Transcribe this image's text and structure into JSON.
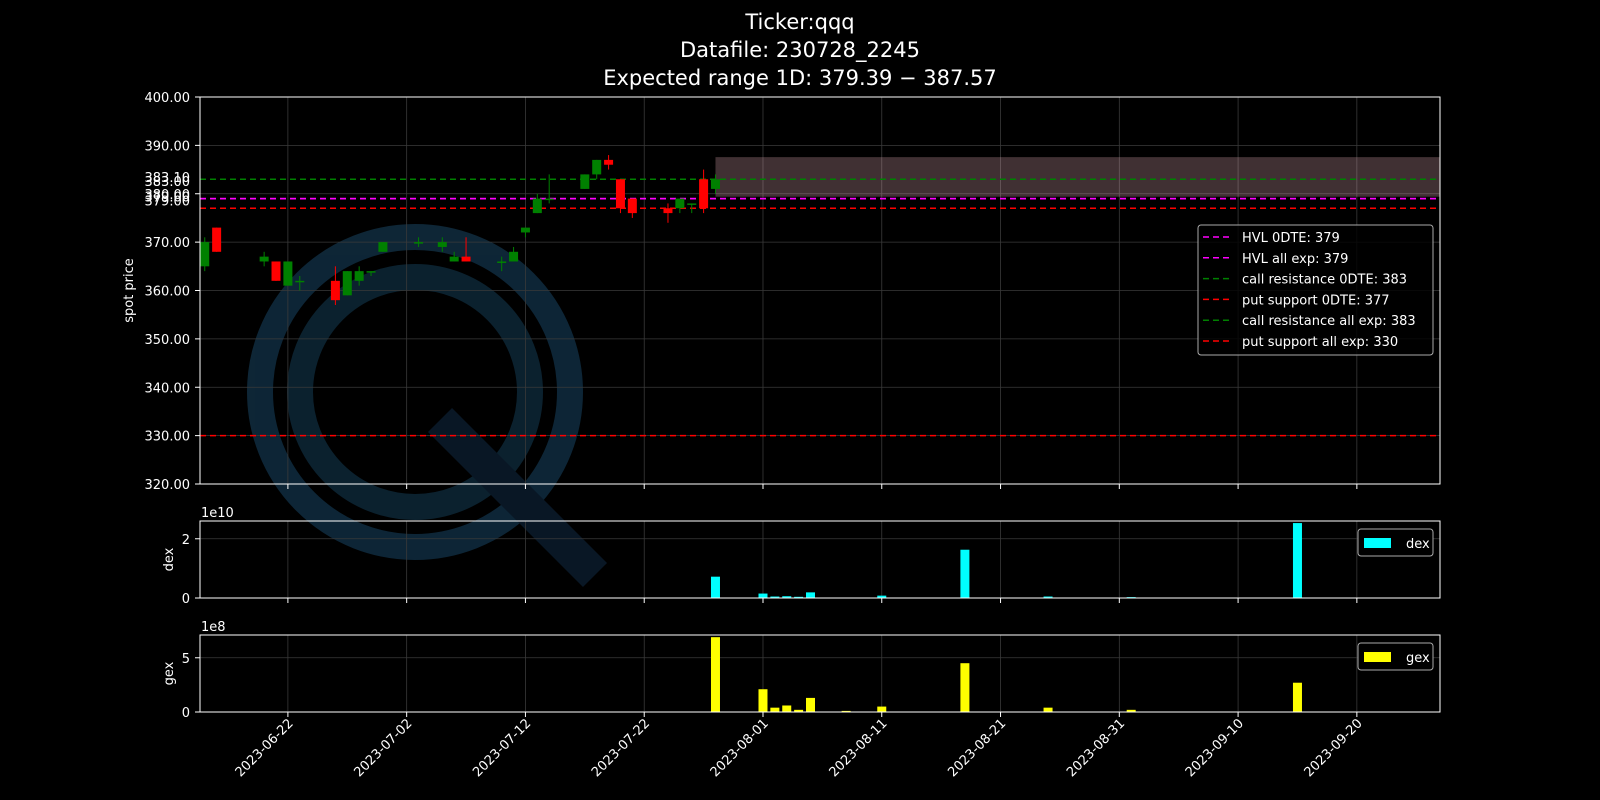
{
  "title": {
    "line1": "Ticker:qqq",
    "line2": "Datafile: 230728_2245",
    "line3": "Expected range 1D: 379.39 − 387.57"
  },
  "colors": {
    "background": "#000000",
    "up": "#008000",
    "down": "#ff0000",
    "hvl": "#ff00ff",
    "call_resistance": "#008000",
    "put_support": "#ff0000",
    "dex": "#00ffff",
    "gex": "#ffff00",
    "expected_range_fill": "#ffc0cb",
    "watermark": "#0d2a40"
  },
  "chart_data": [
    {
      "type": "candlestick",
      "ylabel": "spot price",
      "ylim": [
        320,
        400
      ],
      "yticks": [
        "320.00",
        "330.00",
        "340.00",
        "350.00",
        "360.00",
        "370.00",
        "380.00",
        "390.00",
        "400.00"
      ],
      "extra_ytick_labels": [
        {
          "label": "383.10",
          "value": 383.1
        },
        {
          "label": "383.00",
          "value": 383.0
        },
        {
          "label": "379.00",
          "value": 379.0
        },
        {
          "label": "379.00",
          "value": 379.0
        }
      ],
      "x_range": [
        "2023-06-15",
        "2023-09-27"
      ],
      "xticks": [
        "2023-06-22",
        "2023-07-02",
        "2023-07-12",
        "2023-07-22",
        "2023-08-01",
        "2023-08-11",
        "2023-08-21",
        "2023-08-31",
        "2023-09-10",
        "2023-09-20"
      ],
      "grid": true,
      "candles": [
        {
          "date": "2023-06-15",
          "open": 365,
          "high": 371,
          "low": 364,
          "close": 370
        },
        {
          "date": "2023-06-16",
          "open": 373,
          "high": 373,
          "low": 368,
          "close": 368
        },
        {
          "date": "2023-06-20",
          "open": 366,
          "high": 368,
          "low": 365,
          "close": 367
        },
        {
          "date": "2023-06-21",
          "open": 366,
          "high": 366,
          "low": 362,
          "close": 362
        },
        {
          "date": "2023-06-22",
          "open": 361,
          "high": 366,
          "low": 361,
          "close": 366
        },
        {
          "date": "2023-06-23",
          "open": 362,
          "high": 363,
          "low": 360,
          "close": 362
        },
        {
          "date": "2023-06-26",
          "open": 362,
          "high": 365,
          "low": 357,
          "close": 358
        },
        {
          "date": "2023-06-27",
          "open": 359,
          "high": 364,
          "low": 359,
          "close": 364
        },
        {
          "date": "2023-06-28",
          "open": 362,
          "high": 365,
          "low": 361,
          "close": 364
        },
        {
          "date": "2023-06-29",
          "open": 364,
          "high": 364,
          "low": 363,
          "close": 364
        },
        {
          "date": "2023-06-30",
          "open": 368,
          "high": 370,
          "low": 368,
          "close": 370
        },
        {
          "date": "2023-07-03",
          "open": 370,
          "high": 371,
          "low": 369,
          "close": 370
        },
        {
          "date": "2023-07-05",
          "open": 369,
          "high": 371,
          "low": 368,
          "close": 370
        },
        {
          "date": "2023-07-06",
          "open": 366,
          "high": 368,
          "low": 366,
          "close": 367
        },
        {
          "date": "2023-07-07",
          "open": 367,
          "high": 371,
          "low": 366,
          "close": 366
        },
        {
          "date": "2023-07-10",
          "open": 366,
          "high": 367,
          "low": 364,
          "close": 366
        },
        {
          "date": "2023-07-11",
          "open": 366,
          "high": 369,
          "low": 366,
          "close": 368
        },
        {
          "date": "2023-07-12",
          "open": 372,
          "high": 373,
          "low": 371,
          "close": 373
        },
        {
          "date": "2023-07-13",
          "open": 376,
          "high": 380,
          "low": 376,
          "close": 379
        },
        {
          "date": "2023-07-14",
          "open": 379,
          "high": 384,
          "low": 378,
          "close": 379
        },
        {
          "date": "2023-07-17",
          "open": 381,
          "high": 384,
          "low": 381,
          "close": 384
        },
        {
          "date": "2023-07-18",
          "open": 384,
          "high": 387,
          "low": 383,
          "close": 387
        },
        {
          "date": "2023-07-19",
          "open": 387,
          "high": 388,
          "low": 385,
          "close": 386
        },
        {
          "date": "2023-07-20",
          "open": 383,
          "high": 383,
          "low": 376,
          "close": 377
        },
        {
          "date": "2023-07-21",
          "open": 379,
          "high": 379,
          "low": 375,
          "close": 376
        },
        {
          "date": "2023-07-24",
          "open": 377,
          "high": 378,
          "low": 374,
          "close": 376
        },
        {
          "date": "2023-07-25",
          "open": 377,
          "high": 379,
          "low": 376,
          "close": 379
        },
        {
          "date": "2023-07-26",
          "open": 378,
          "high": 378,
          "low": 376,
          "close": 378
        },
        {
          "date": "2023-07-27",
          "open": 383,
          "high": 385,
          "low": 376,
          "close": 377
        },
        {
          "date": "2023-07-28",
          "open": 381,
          "high": 384,
          "low": 380,
          "close": 383
        }
      ],
      "expected_range_band": {
        "x_start": "2023-07-28",
        "x_end": "2023-09-27",
        "y_low": 379.39,
        "y_high": 387.57
      },
      "lines": [
        {
          "name": "HVL 0DTE: 379",
          "value": 379,
          "color_key": "hvl"
        },
        {
          "name": "HVL all exp: 379",
          "value": 379,
          "color_key": "hvl"
        },
        {
          "name": "call resistance 0DTE: 383",
          "value": 383,
          "color_key": "call_resistance"
        },
        {
          "name": "put support 0DTE: 377",
          "value": 377,
          "color_key": "put_support"
        },
        {
          "name": "call resistance all exp: 383",
          "value": 383,
          "color_key": "call_resistance"
        },
        {
          "name": "put support all exp: 330",
          "value": 330,
          "color_key": "put_support"
        }
      ],
      "legend_position": "right"
    },
    {
      "type": "bar",
      "name": "dex",
      "ylabel": "dex",
      "scale_label": "1e10",
      "ylim": [
        0,
        2.6
      ],
      "yticks": [
        "0",
        "2"
      ],
      "ytick_values": [
        0,
        2
      ],
      "legend": "dex",
      "legend_position": "top-right",
      "x": [
        "2023-07-28",
        "2023-08-01",
        "2023-08-02",
        "2023-08-03",
        "2023-08-04",
        "2023-08-05",
        "2023-08-11",
        "2023-08-18",
        "2023-08-25",
        "2023-09-01",
        "2023-09-15"
      ],
      "values": [
        0.72,
        0.15,
        0.05,
        0.06,
        0.04,
        0.19,
        0.08,
        1.63,
        0.05,
        0.03,
        2.53
      ]
    },
    {
      "type": "bar",
      "name": "gex",
      "ylabel": "gex",
      "scale_label": "1e8",
      "ylim": [
        0,
        7.1
      ],
      "yticks": [
        "0",
        "5"
      ],
      "ytick_values": [
        0,
        5
      ],
      "legend": "gex",
      "legend_position": "top-right",
      "x": [
        "2023-07-28",
        "2023-08-01",
        "2023-08-02",
        "2023-08-03",
        "2023-08-04",
        "2023-08-05",
        "2023-08-08",
        "2023-08-11",
        "2023-08-18",
        "2023-08-25",
        "2023-09-01",
        "2023-09-15"
      ],
      "values": [
        6.9,
        2.1,
        0.4,
        0.6,
        0.2,
        1.3,
        0.1,
        0.5,
        4.5,
        0.4,
        0.2,
        2.7
      ]
    }
  ]
}
